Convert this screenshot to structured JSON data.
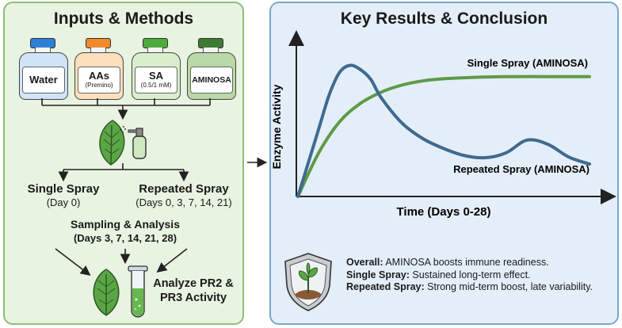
{
  "left": {
    "title": "Inputs & Methods",
    "bottles": [
      {
        "label": "Water",
        "sub": "",
        "cap_color": "#2f7fd6",
        "body_color": "#cfe4f6"
      },
      {
        "label": "AAs",
        "sub": "(Premino)",
        "cap_color": "#f08a2c",
        "body_color": "#fbe0bd"
      },
      {
        "label": "SA",
        "sub": "(0.5/1 mM)",
        "cap_color": "#4faa3c",
        "body_color": "#d9efcc"
      },
      {
        "label": "AMINOSA",
        "sub": "",
        "cap_color": "#3e7a34",
        "body_color": "#b9d9a8"
      }
    ],
    "single_spray": {
      "title": "Single Spray",
      "detail": "(Day 0)"
    },
    "repeated_spray": {
      "title": "Repeated Spray",
      "detail": "(Days 0, 3, 7, 14, 21)"
    },
    "sampling": {
      "title": "Sampling & Analysis",
      "detail": "(Days 3, 7, 14, 21, 28)"
    },
    "analyze_line1": "Analyze PR2 &",
    "analyze_line2": "PR3 Activity"
  },
  "right": {
    "title": "Key Results & Conclusion",
    "chart_data": {
      "type": "line",
      "xlabel": "Time (Days 0-28)",
      "ylabel": "Enzyme Activity",
      "xlim": [
        0,
        28
      ],
      "ylim": [
        0,
        10
      ],
      "series": [
        {
          "name": "Single Spray (AMINOSA)",
          "color": "#5f9a48",
          "x": [
            0,
            2,
            4,
            6,
            8,
            10,
            12,
            14,
            17,
            20,
            24,
            28
          ],
          "y": [
            0,
            3.1,
            5.3,
            6.6,
            7.4,
            7.9,
            8.2,
            8.35,
            8.45,
            8.5,
            8.5,
            8.5
          ]
        },
        {
          "name": "Repeated Spray (AMINOSA)",
          "color": "#3f6a8f",
          "x": [
            0,
            2,
            3,
            4,
            5,
            6,
            7,
            8,
            10,
            12,
            14,
            16,
            18,
            20,
            22,
            24,
            26,
            28
          ],
          "y": [
            0,
            4.8,
            7.2,
            8.8,
            9.3,
            9.0,
            8.3,
            7.0,
            5.2,
            4.1,
            3.4,
            2.9,
            2.75,
            3.1,
            4.0,
            3.7,
            2.8,
            2.3
          ]
        }
      ]
    },
    "conclusion": {
      "overall_label": "Overall:",
      "overall_text": " AMINOSA boosts immune readiness.",
      "single_label": "Single Spray:",
      "single_text": " Sustained long-term effect.",
      "repeated_label": "Repeated Spray:",
      "repeated_text": " Strong mid-term boost, late variability."
    }
  }
}
